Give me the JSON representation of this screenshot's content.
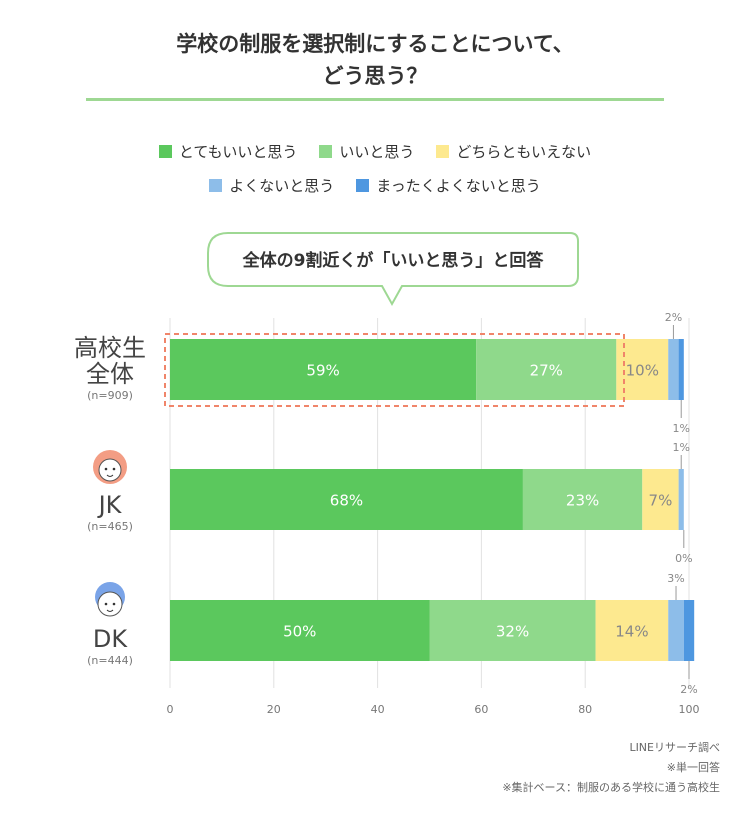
{
  "title_line1": "学校の制服を選択制にすることについて、",
  "title_line2": "どう思う？",
  "callout": "全体の9割近くが「いいと思う」と回答",
  "legend": [
    {
      "label": "とてもいいと思う",
      "color": "#5bc85d"
    },
    {
      "label": "いいと思う",
      "color": "#8fd98b"
    },
    {
      "label": "どちらともいえない",
      "color": "#fde98f"
    },
    {
      "label": "よくないと思う",
      "color": "#8dbde9"
    },
    {
      "label": "まったくよくないと思う",
      "color": "#4e97e0"
    }
  ],
  "groups": [
    {
      "label1": "高校生",
      "label2": "全体",
      "n": "(n=909)",
      "icon": "none"
    },
    {
      "label1": "JK",
      "label2": "",
      "n": "(n=465)",
      "icon": "girl-face-icon"
    },
    {
      "label1": "DK",
      "label2": "",
      "n": "(n=444)",
      "icon": "boy-face-icon"
    }
  ],
  "sources": [
    "LINEリサーチ調べ",
    "※単一回答",
    "※集計ベース：制服のある学校に通う高校生"
  ],
  "chart_data": {
    "type": "bar",
    "orientation": "horizontal",
    "stacked": true,
    "categories": [
      "高校生全体",
      "JK",
      "DK"
    ],
    "series": [
      {
        "name": "とてもいいと思う",
        "values": [
          59,
          68,
          50
        ],
        "labels": [
          "59%",
          "68%",
          "50%"
        ],
        "color": "#5bc85d"
      },
      {
        "name": "いいと思う",
        "values": [
          27,
          23,
          32
        ],
        "labels": [
          "27%",
          "23%",
          "32%"
        ],
        "color": "#8fd98b"
      },
      {
        "name": "どちらともいえない",
        "values": [
          10,
          7,
          14
        ],
        "labels": [
          "10%",
          "7%",
          "14%"
        ],
        "color": "#fde98f"
      },
      {
        "name": "よくないと思う",
        "values": [
          2,
          1,
          3
        ],
        "labels": [
          "2%",
          "1%",
          "3%"
        ],
        "color": "#8dbde9"
      },
      {
        "name": "まったくよくないと思う",
        "values": [
          1,
          0,
          2
        ],
        "labels": [
          "1%",
          "0%",
          "2%"
        ],
        "color": "#4e97e0"
      }
    ],
    "xlim": [
      0,
      100
    ],
    "xticks": [
      "0",
      "20",
      "40",
      "60",
      "80",
      "100"
    ],
    "grid": true,
    "highlight": "dashed box around 高校生全体 positive responses"
  }
}
